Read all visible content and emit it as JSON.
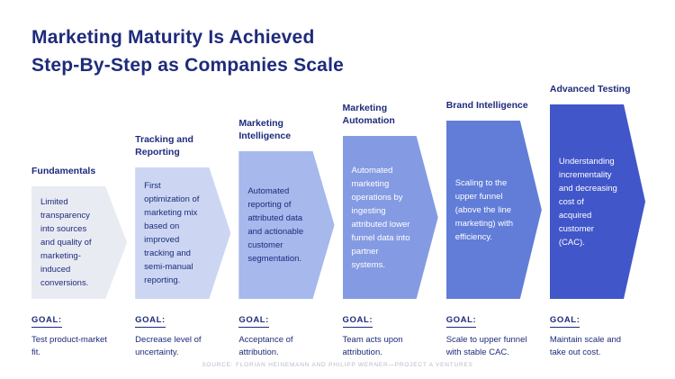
{
  "title": {
    "line1": "Marketing Maturity Is Achieved",
    "line2": "Step-By-Step as Companies Scale"
  },
  "goal_label": "GOAL:",
  "source": "SOURCE: FLORIAN HEINEMANN AND PHILIPP WERNER—PROJECT A VENTURES",
  "colors": {
    "heading": "#1e2b7b",
    "source_text": "#b6bbc9"
  },
  "stages": [
    {
      "label": "Fundamentals",
      "description": "Limited transparency into sources and quality of marketing-induced conversions.",
      "goal": "Test product-market fit.",
      "fill": "#e9ebf3",
      "text_color": "#1e2b7b"
    },
    {
      "label": "Tracking and Reporting",
      "description": "First optimization of marketing mix based on improved tracking and semi-manual reporting.",
      "goal": "Decrease level of uncertainty.",
      "fill": "#ccd6f2",
      "text_color": "#1e2b7b"
    },
    {
      "label": "Marketing Intelligence",
      "description": "Automated reporting of attributed data and actionable customer segmentation.",
      "goal": "Acceptance of attribution.",
      "fill": "#a6b8ec",
      "text_color": "#1e2b7b"
    },
    {
      "label": "Marketing Automation",
      "description": "Automated marketing operations by ingesting attributed lower funnel data into partner systems.",
      "goal": "Team acts upon attribution.",
      "fill": "#849be3",
      "text_color": "#ffffff"
    },
    {
      "label": "Brand Intelligence",
      "description": "Scaling to the upper funnel (above the line marketing) with efficiency.",
      "goal": "Scale to upper funnel with stable CAC.",
      "fill": "#617dd8",
      "text_color": "#ffffff"
    },
    {
      "label": "Advanced Testing",
      "description": "Understanding incrementality and decreasing cost of acquired customer (CAC).",
      "goal": "Maintain scale and take out cost.",
      "fill": "#4156c9",
      "text_color": "#ffffff"
    }
  ]
}
